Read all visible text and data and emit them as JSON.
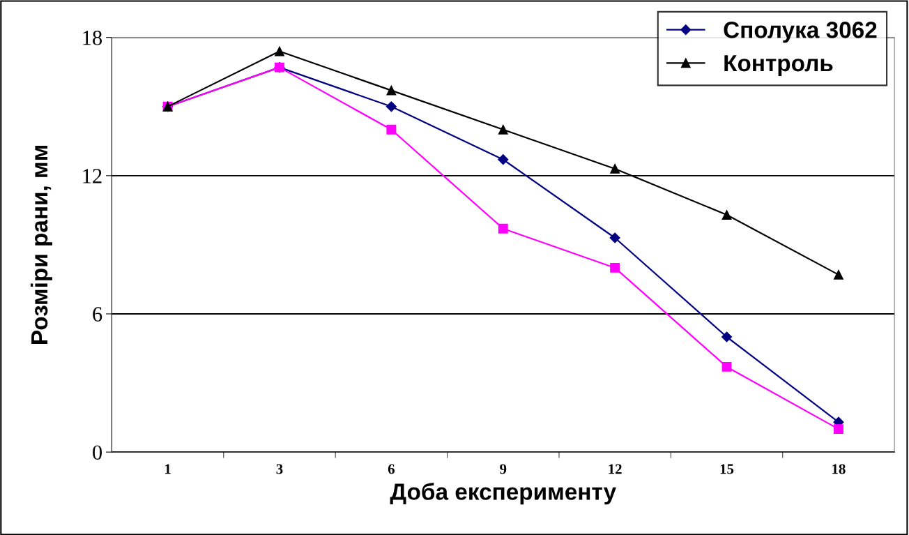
{
  "chart_data": {
    "type": "line",
    "xlabel": "Доба експерименту",
    "ylabel": "Розміри рани, мм",
    "categories": [
      "1",
      "3",
      "6",
      "9",
      "12",
      "15",
      "18"
    ],
    "series": [
      {
        "name": "Сполука 3062",
        "color": "#000080",
        "marker": "diamond",
        "values": [
          15.0,
          16.7,
          15.0,
          12.7,
          9.3,
          5.0,
          1.3
        ]
      },
      {
        "color": "#ff00ff",
        "marker": "square",
        "values": [
          15.0,
          16.7,
          14.0,
          9.7,
          8.0,
          3.7,
          1.0
        ]
      },
      {
        "name": "Контроль",
        "color": "#000000",
        "marker": "triangle",
        "values": [
          15.0,
          17.4,
          15.7,
          14.0,
          12.3,
          10.3,
          7.7
        ]
      }
    ],
    "ylim": [
      0,
      18
    ],
    "yticks": [
      0,
      6,
      12,
      18
    ],
    "grid": "y",
    "legend": "top right"
  }
}
